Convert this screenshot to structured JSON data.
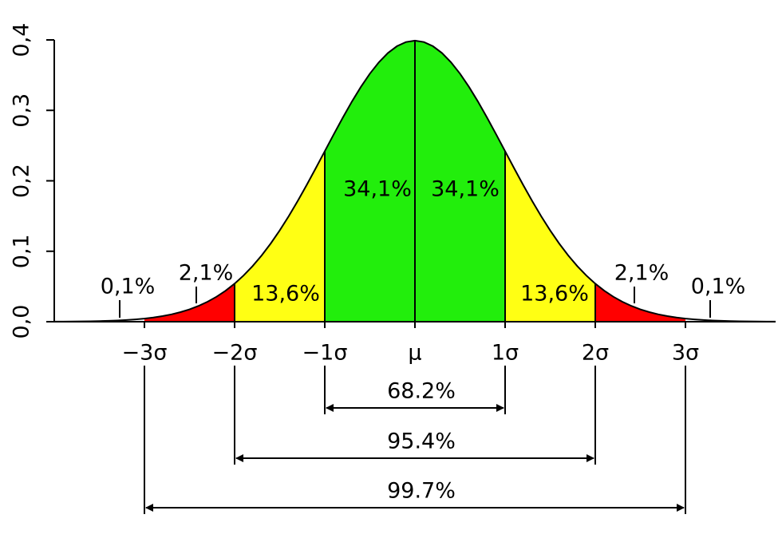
{
  "chart_data": {
    "type": "normal-distribution",
    "xlim": [
      -4,
      4
    ],
    "xticks": [
      {
        "value": -3,
        "label": "−3σ"
      },
      {
        "value": -2,
        "label": "−2σ"
      },
      {
        "value": -1,
        "label": "−1σ"
      },
      {
        "value": 0,
        "label": "μ"
      },
      {
        "value": 1,
        "label": "1σ"
      },
      {
        "value": 2,
        "label": "2σ"
      },
      {
        "value": 3,
        "label": "3σ"
      }
    ],
    "ylim": [
      0,
      0.4
    ],
    "yticks": [
      {
        "value": 0,
        "label": "0,0"
      },
      {
        "value": 0.1,
        "label": "0,1"
      },
      {
        "value": 0.2,
        "label": "0,2"
      },
      {
        "value": 0.3,
        "label": "0,3"
      },
      {
        "value": 0.4,
        "label": "0,4"
      }
    ],
    "regions": {
      "values": [
        0.1,
        2.1,
        13.6,
        34.1,
        34.1,
        13.6,
        2.1,
        0.1
      ],
      "value_labels": [
        "0,1%",
        "2,1%",
        "13,6%",
        "34,1%",
        "34,1%",
        "13,6%",
        "2,1%",
        "0,1%"
      ],
      "colors": [
        "#ffffff",
        "#ff0000",
        "#ffff14",
        "#22ee0c",
        "#22ee0c",
        "#ffff14",
        "#ff0000",
        "#ffffff"
      ]
    },
    "intervals": {
      "values": [
        68.2,
        95.4,
        99.7
      ],
      "value_labels": [
        "68.2%",
        "95.4%",
        "99.7%"
      ]
    }
  }
}
